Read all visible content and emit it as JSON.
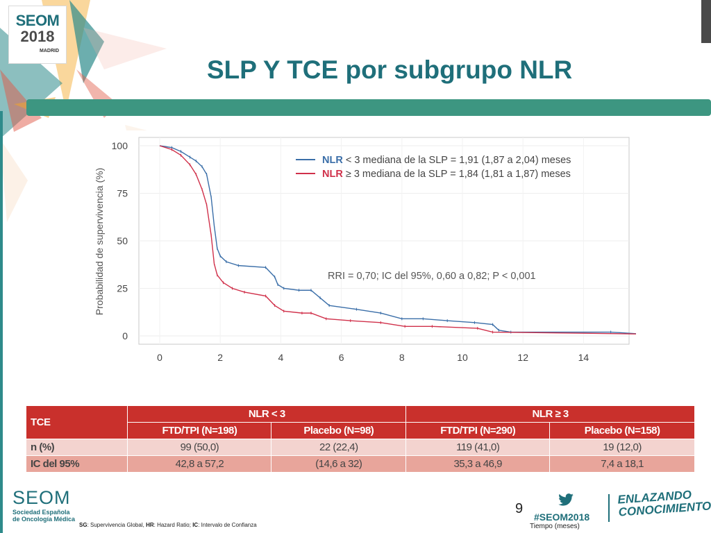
{
  "header": {
    "logo_line1": "SEOM",
    "logo_line2": "2018",
    "logo_city": "MADRID",
    "title": "SLP Y TCE por subgrupo NLR"
  },
  "chart_data": {
    "type": "line",
    "ylabel": "Probabilidad de supervivencia (%)",
    "xlabel": "Tiempo (meses)",
    "xlim": [
      0,
      16
    ],
    "ylim": [
      0,
      100
    ],
    "x_ticks": [
      0,
      2,
      4,
      6,
      8,
      10,
      12,
      14
    ],
    "y_ticks": [
      0,
      25,
      50,
      75,
      100
    ],
    "grid": true,
    "legend_position": "top-right",
    "annotation": "RRI = 0,70; IC del 95%, 0,60 a 0,82; P < 0,001",
    "series": [
      {
        "name": "NLR < 3 mediana de la SLP = 1,91 (1,87 a 2,04) meses",
        "legend_prefix": "NLR",
        "legend_rest": " < 3 mediana de la SLP = 1,91 (1,87 a 2,04) meses",
        "color": "#3a6ea8",
        "x": [
          0,
          0.4,
          0.7,
          1.0,
          1.2,
          1.4,
          1.55,
          1.7,
          1.8,
          1.9,
          2.0,
          2.2,
          2.6,
          3.5,
          3.8,
          3.9,
          4.1,
          4.6,
          5.0,
          5.3,
          5.6,
          6.5,
          7.3,
          8.0,
          8.7,
          9.5,
          10.4,
          11.0,
          11.2,
          11.6,
          14.9,
          15.9
        ],
        "y": [
          100,
          99,
          97,
          94,
          92,
          89,
          85,
          73,
          58,
          46,
          42,
          39,
          37,
          36,
          31,
          27,
          25,
          24,
          24,
          20,
          16,
          14,
          12,
          9,
          9,
          8,
          7,
          6,
          3,
          2,
          2,
          1
        ]
      },
      {
        "name": "NLR ≥ 3 mediana de la SLP = 1,84 (1,81 a 1,87) meses",
        "legend_prefix": "NLR",
        "legend_rest": " ≥ 3 mediana de la SLP = 1,84 (1,81 a 1,87) meses",
        "color": "#d0304a",
        "x": [
          0,
          0.4,
          0.7,
          1.0,
          1.2,
          1.4,
          1.55,
          1.7,
          1.8,
          1.9,
          2.1,
          2.4,
          2.8,
          3.5,
          3.8,
          4.1,
          4.7,
          5.0,
          5.5,
          6.3,
          7.3,
          8.1,
          9.0,
          10.5,
          11.0,
          15.9
        ],
        "y": [
          100,
          98,
          95,
          90,
          85,
          77,
          69,
          53,
          38,
          32,
          28,
          25,
          23,
          21,
          16,
          13,
          12,
          12,
          9,
          8,
          7,
          5,
          5,
          4,
          2,
          1
        ]
      }
    ],
    "table": {
      "header_label": "TCE",
      "groups": [
        "NLR < 3",
        "NLR ≥ 3"
      ],
      "columns": [
        "FTD/TPI (N=198)",
        "Placebo (N=98)",
        "FTD/TPI (N=290)",
        "Placebo (N=158)"
      ],
      "rows": [
        {
          "label": "n (%)",
          "values": [
            "99 (50,0)",
            "22 (22,4)",
            "119 (41,0)",
            "19 (12,0)"
          ]
        },
        {
          "label": "IC del 95%",
          "values": [
            "42,8 a 57,2",
            "(14,6 a 32)",
            "35,3 a 46,9",
            "7,4 a 18,1"
          ]
        }
      ]
    }
  },
  "footer": {
    "seom_word": "SEOM",
    "seom_sub1": "Sociedad Española",
    "seom_sub2": "de Oncología Médica",
    "footnote_parts": [
      "SG",
      ": Supervivencia Global, ",
      "HR",
      ": Hazard Ratio; ",
      "IC",
      ": Intervalo de Confianza"
    ],
    "page_number": "9",
    "hashtag": "#SEOM2018",
    "enlazando_1": "ENLAZANDO",
    "enlazando_2": "CONOCIMIENTO"
  },
  "colors": {
    "brand_teal": "#1f6f7a",
    "bar_green": "#3d9681",
    "table_red": "#c9302c",
    "row_light": "#f3d3cf",
    "row_dark": "#e8a59b"
  }
}
